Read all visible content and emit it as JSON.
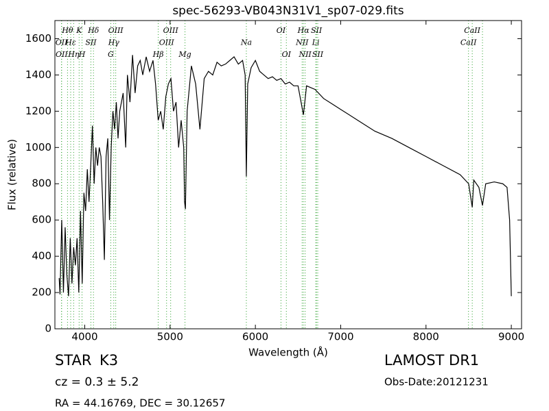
{
  "chart_data": {
    "type": "line",
    "title": "spec-56293-VB043N31V1_sp07-029.fits",
    "x_label": "Wavelength (Å)",
    "y_label": "Flux (relative)",
    "color": "#000000",
    "annotation_color": "#2ca02c",
    "xlim": [
      3650,
      9120
    ],
    "ylim": [
      0,
      1700
    ],
    "xticks": [
      4000,
      5000,
      6000,
      7000,
      8000,
      9000
    ],
    "yticks": [
      0,
      200,
      400,
      600,
      800,
      1000,
      1200,
      1400,
      1600
    ],
    "grid": false,
    "x": [
      3700,
      3710,
      3730,
      3750,
      3770,
      3790,
      3810,
      3830,
      3850,
      3870,
      3890,
      3910,
      3930,
      3950,
      3970,
      3990,
      4010,
      4030,
      4050,
      4070,
      4090,
      4110,
      4130,
      4150,
      4170,
      4190,
      4210,
      4230,
      4250,
      4270,
      4290,
      4310,
      4330,
      4350,
      4370,
      4390,
      4410,
      4450,
      4480,
      4500,
      4530,
      4560,
      4590,
      4620,
      4650,
      4680,
      4720,
      4760,
      4800,
      4830,
      4861,
      4890,
      4920,
      4950,
      4980,
      5010,
      5040,
      5070,
      5100,
      5130,
      5160,
      5170,
      5180,
      5200,
      5250,
      5300,
      5350,
      5400,
      5450,
      5500,
      5550,
      5600,
      5650,
      5700,
      5750,
      5800,
      5850,
      5880,
      5894,
      5910,
      5950,
      6000,
      6050,
      6100,
      6150,
      6200,
      6250,
      6300,
      6350,
      6400,
      6450,
      6500,
      6563,
      6600,
      6700,
      6800,
      6900,
      7000,
      7200,
      7400,
      7600,
      7800,
      8000,
      8200,
      8400,
      8500,
      8542,
      8560,
      8620,
      8662,
      8700,
      8800,
      8900,
      8950,
      8980,
      9000
    ],
    "values": [
      280,
      190,
      600,
      200,
      560,
      300,
      180,
      500,
      250,
      450,
      350,
      500,
      200,
      650,
      250,
      750,
      650,
      880,
      700,
      900,
      1120,
      800,
      1000,
      900,
      1000,
      950,
      700,
      380,
      950,
      1050,
      600,
      1000,
      1200,
      1100,
      1250,
      1050,
      1200,
      1300,
      1000,
      1400,
      1250,
      1510,
      1300,
      1450,
      1480,
      1400,
      1500,
      1420,
      1480,
      1350,
      1150,
      1200,
      1100,
      1280,
      1350,
      1380,
      1200,
      1250,
      1000,
      1150,
      1000,
      700,
      660,
      1200,
      1450,
      1350,
      1100,
      1380,
      1420,
      1400,
      1470,
      1450,
      1460,
      1480,
      1500,
      1460,
      1480,
      1400,
      840,
      1350,
      1440,
      1480,
      1420,
      1400,
      1380,
      1390,
      1370,
      1380,
      1350,
      1360,
      1340,
      1340,
      1180,
      1340,
      1320,
      1270,
      1240,
      1210,
      1150,
      1090,
      1050,
      1000,
      950,
      900,
      850,
      800,
      670,
      820,
      780,
      680,
      800,
      810,
      800,
      780,
      600,
      180
    ],
    "line_annotations": [
      {
        "label": "Hθ",
        "x": 3798
      },
      {
        "label": "OII",
        "x": 3727
      },
      {
        "label": "OII",
        "x": 3729
      },
      {
        "label": "K",
        "x": 3934
      },
      {
        "label": "Hε",
        "x": 3835
      },
      {
        "label": "Hη",
        "x": 3870
      },
      {
        "label": "Hδ",
        "x": 4102
      },
      {
        "label": "SII",
        "x": 4072
      },
      {
        "label": "H",
        "x": 3968
      },
      {
        "label": "OIII",
        "x": 4363
      },
      {
        "label": "Hγ",
        "x": 4340
      },
      {
        "label": "G",
        "x": 4305
      },
      {
        "label": "OIII",
        "x": 5007
      },
      {
        "label": "OIII",
        "x": 4959
      },
      {
        "label": "Hβ",
        "x": 4861
      },
      {
        "label": "OI",
        "x": 6300
      },
      {
        "label": "Na",
        "x": 5894
      },
      {
        "label": "Mg",
        "x": 5175
      },
      {
        "label": "Hα",
        "x": 6563
      },
      {
        "label": "NII",
        "x": 6548
      },
      {
        "label": "OI",
        "x": 6363
      },
      {
        "label": "SII",
        "x": 6716
      },
      {
        "label": "Li",
        "x": 6708
      },
      {
        "label": "NII",
        "x": 6583
      },
      {
        "label": "CaII",
        "x": 8542
      },
      {
        "label": "CaII",
        "x": 8498
      },
      {
        "label": "SII",
        "x": 6731
      },
      {
        "label": "",
        "x": 8662
      }
    ],
    "object_type": "STAR",
    "subclass": "K3",
    "redshift": "cz = 0.3 ± 5.2",
    "coordinates": "RA = 44.16769, DEC = 30.12657",
    "survey": "LAMOST DR1",
    "obs_date": "Obs-Date:20121231"
  }
}
